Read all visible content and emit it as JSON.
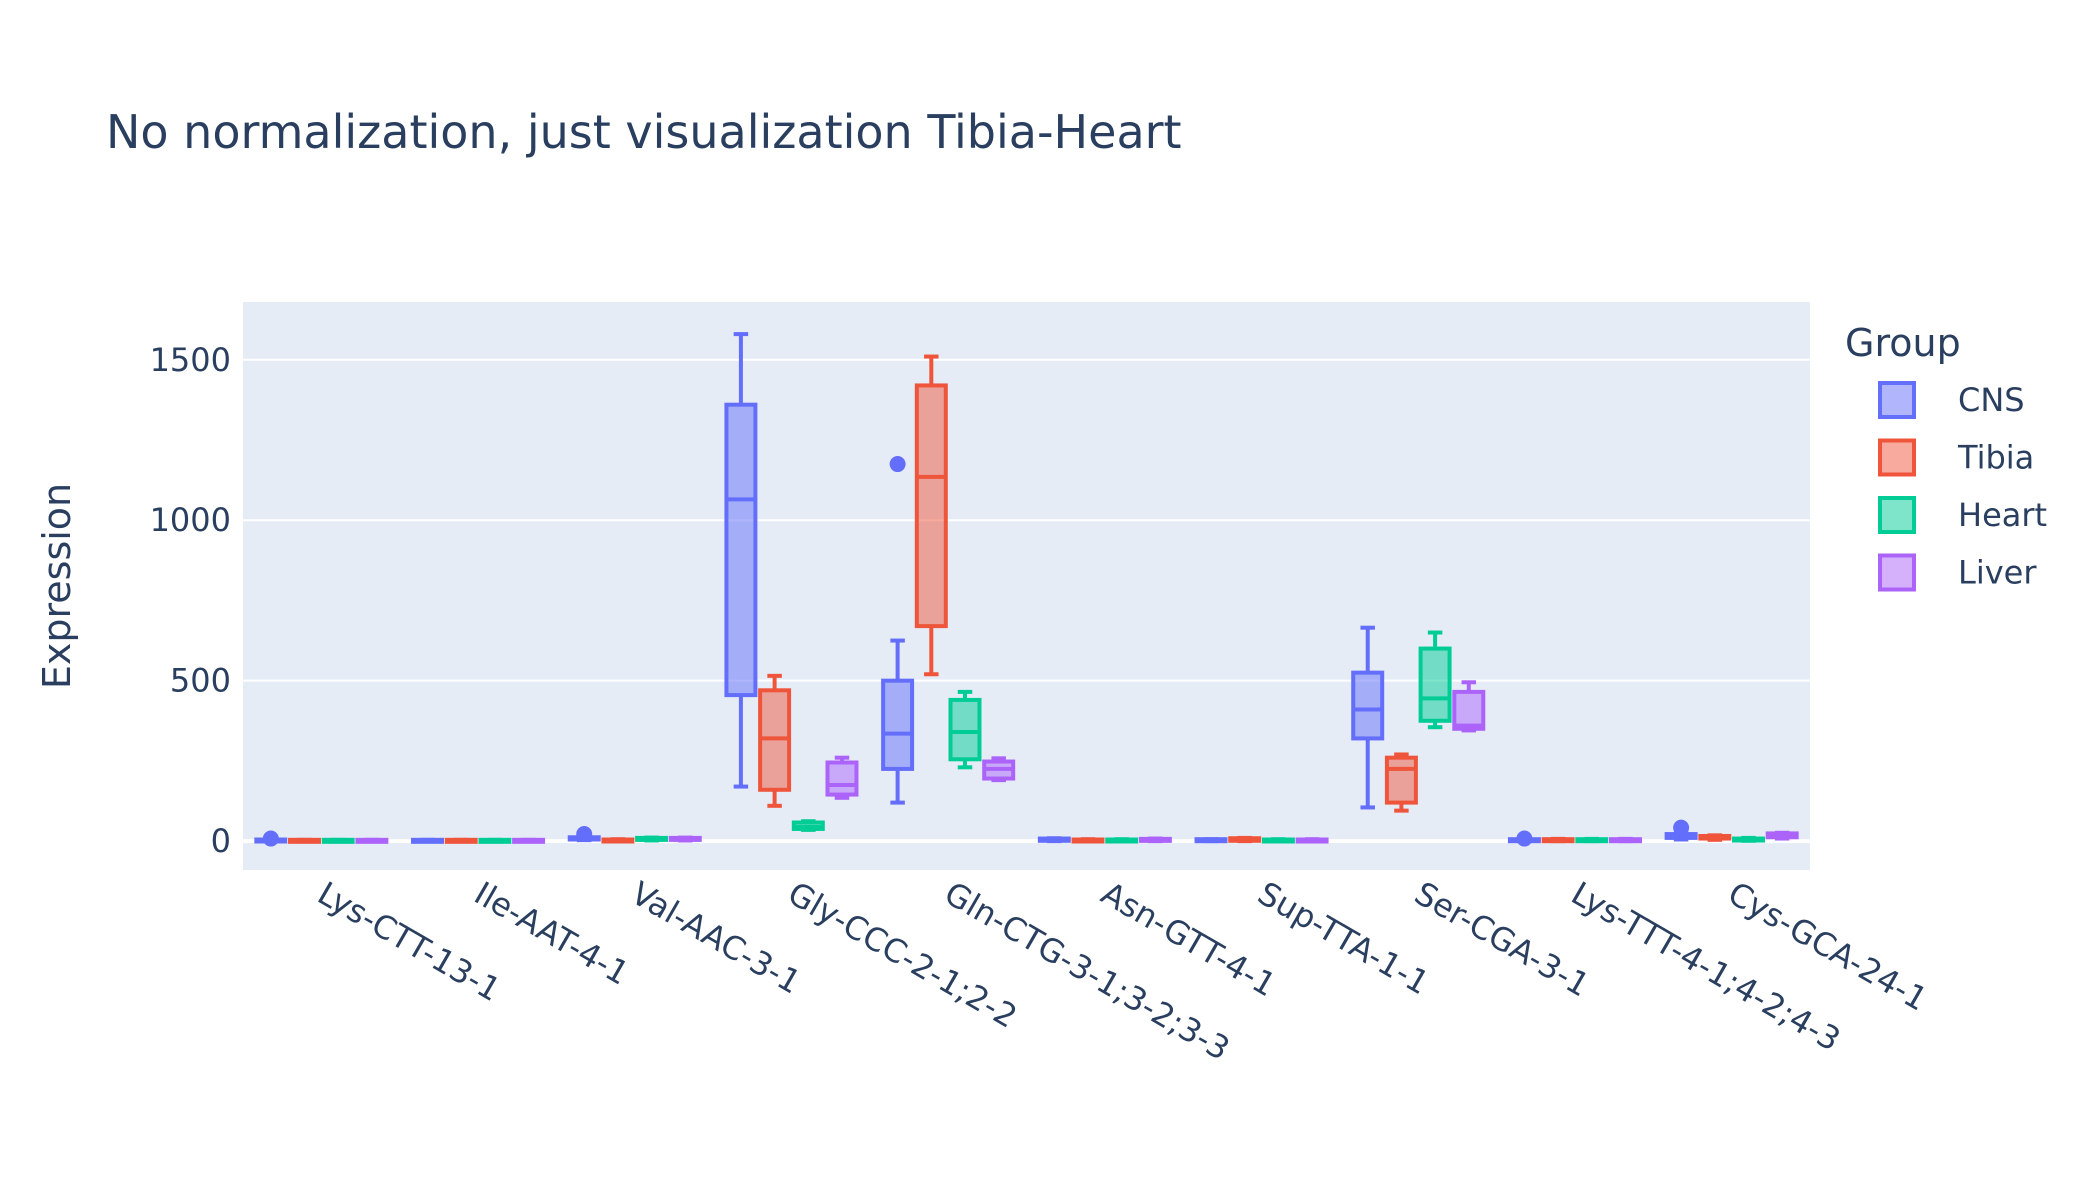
{
  "chart_data": {
    "type": "box",
    "title": "No normalization, just visualization Tibia-Heart",
    "xlabel": "",
    "ylabel": "Expression",
    "ylim": [
      -90,
      1680
    ],
    "yticks": [
      0,
      500,
      1000,
      1500
    ],
    "grid": true,
    "legend_title": "Group",
    "legend_position": "right",
    "categories": [
      "Lys-CTT-13-1",
      "Ile-AAT-4-1",
      "Val-AAC-3-1",
      "Gly-CCC-2-1;2-2",
      "Gln-CTG-3-1;3-2;3-3",
      "Asn-GTT-4-1",
      "Sup-TTA-1-1",
      "Ser-CGA-3-1",
      "Lys-TTT-4-1;4-2;4-3",
      "Cys-GCA-24-1"
    ],
    "series": [
      {
        "name": "CNS",
        "color": "#636efa",
        "boxes": [
          {
            "min": 0,
            "q1": 0,
            "median": 2,
            "q3": 5,
            "max": 5,
            "outliers": [
              8
            ]
          },
          {
            "min": 0,
            "q1": 0,
            "median": 2,
            "q3": 4,
            "max": 4,
            "outliers": []
          },
          {
            "min": 3,
            "q1": 5,
            "median": 8,
            "q3": 12,
            "max": 14,
            "outliers": [
              22
            ]
          },
          {
            "min": 170,
            "q1": 455,
            "median": 1065,
            "q3": 1360,
            "max": 1580,
            "outliers": []
          },
          {
            "min": 120,
            "q1": 225,
            "median": 335,
            "q3": 500,
            "max": 625,
            "outliers": [
              1175
            ]
          },
          {
            "min": 0,
            "q1": 1,
            "median": 4,
            "q3": 8,
            "max": 9,
            "outliers": []
          },
          {
            "min": 0,
            "q1": 0,
            "median": 3,
            "q3": 6,
            "max": 6,
            "outliers": []
          },
          {
            "min": 105,
            "q1": 320,
            "median": 410,
            "q3": 525,
            "max": 665,
            "outliers": []
          },
          {
            "min": 0,
            "q1": 1,
            "median": 3,
            "q3": 6,
            "max": 7,
            "outliers": [
              8
            ]
          },
          {
            "min": 5,
            "q1": 10,
            "median": 15,
            "q3": 22,
            "max": 26,
            "outliers": [
              42
            ]
          }
        ]
      },
      {
        "name": "Tibia",
        "color": "#ef553b",
        "boxes": [
          {
            "min": 0,
            "q1": 0,
            "median": 2,
            "q3": 4,
            "max": 4,
            "outliers": []
          },
          {
            "min": 0,
            "q1": 0,
            "median": 2,
            "q3": 4,
            "max": 4,
            "outliers": []
          },
          {
            "min": 0,
            "q1": 1,
            "median": 3,
            "q3": 5,
            "max": 6,
            "outliers": []
          },
          {
            "min": 110,
            "q1": 160,
            "median": 320,
            "q3": 470,
            "max": 515,
            "outliers": []
          },
          {
            "min": 520,
            "q1": 670,
            "median": 1135,
            "q3": 1420,
            "max": 1510,
            "outliers": []
          },
          {
            "min": 0,
            "q1": 0,
            "median": 3,
            "q3": 5,
            "max": 6,
            "outliers": []
          },
          {
            "min": 0,
            "q1": 1,
            "median": 5,
            "q3": 9,
            "max": 10,
            "outliers": []
          },
          {
            "min": 95,
            "q1": 120,
            "median": 225,
            "q3": 260,
            "max": 270,
            "outliers": []
          },
          {
            "min": 0,
            "q1": 1,
            "median": 3,
            "q3": 6,
            "max": 7,
            "outliers": []
          },
          {
            "min": 4,
            "q1": 8,
            "median": 12,
            "q3": 16,
            "max": 18,
            "outliers": []
          }
        ]
      },
      {
        "name": "Heart",
        "color": "#00cc96",
        "boxes": [
          {
            "min": 0,
            "q1": 0,
            "median": 2,
            "q3": 4,
            "max": 4,
            "outliers": []
          },
          {
            "min": 0,
            "q1": 0,
            "median": 2,
            "q3": 4,
            "max": 4,
            "outliers": []
          },
          {
            "min": 2,
            "q1": 4,
            "median": 7,
            "q3": 10,
            "max": 11,
            "outliers": []
          },
          {
            "min": 35,
            "q1": 38,
            "median": 44,
            "q3": 58,
            "max": 62,
            "outliers": []
          },
          {
            "min": 230,
            "q1": 255,
            "median": 340,
            "q3": 440,
            "max": 465,
            "outliers": []
          },
          {
            "min": 0,
            "q1": 0,
            "median": 3,
            "q3": 5,
            "max": 6,
            "outliers": []
          },
          {
            "min": 0,
            "q1": 0,
            "median": 3,
            "q3": 5,
            "max": 6,
            "outliers": []
          },
          {
            "min": 355,
            "q1": 375,
            "median": 445,
            "q3": 600,
            "max": 650,
            "outliers": []
          },
          {
            "min": 0,
            "q1": 1,
            "median": 3,
            "q3": 6,
            "max": 7,
            "outliers": []
          },
          {
            "min": 1,
            "q1": 3,
            "median": 5,
            "q3": 8,
            "max": 10,
            "outliers": []
          }
        ]
      },
      {
        "name": "Liver",
        "color": "#ab63fa",
        "boxes": [
          {
            "min": 0,
            "q1": 0,
            "median": 2,
            "q3": 4,
            "max": 4,
            "outliers": []
          },
          {
            "min": 0,
            "q1": 0,
            "median": 2,
            "q3": 4,
            "max": 4,
            "outliers": []
          },
          {
            "min": 2,
            "q1": 4,
            "median": 7,
            "q3": 10,
            "max": 11,
            "outliers": []
          },
          {
            "min": 135,
            "q1": 145,
            "median": 175,
            "q3": 245,
            "max": 260,
            "outliers": []
          },
          {
            "min": 190,
            "q1": 195,
            "median": 225,
            "q3": 248,
            "max": 258,
            "outliers": []
          },
          {
            "min": 0,
            "q1": 1,
            "median": 4,
            "q3": 7,
            "max": 8,
            "outliers": []
          },
          {
            "min": 0,
            "q1": 0,
            "median": 3,
            "q3": 5,
            "max": 6,
            "outliers": []
          },
          {
            "min": 345,
            "q1": 350,
            "median": 360,
            "q3": 465,
            "max": 495,
            "outliers": []
          },
          {
            "min": 0,
            "q1": 1,
            "median": 3,
            "q3": 6,
            "max": 7,
            "outliers": []
          },
          {
            "min": 8,
            "q1": 12,
            "median": 18,
            "q3": 24,
            "max": 26,
            "outliers": []
          }
        ]
      }
    ]
  }
}
